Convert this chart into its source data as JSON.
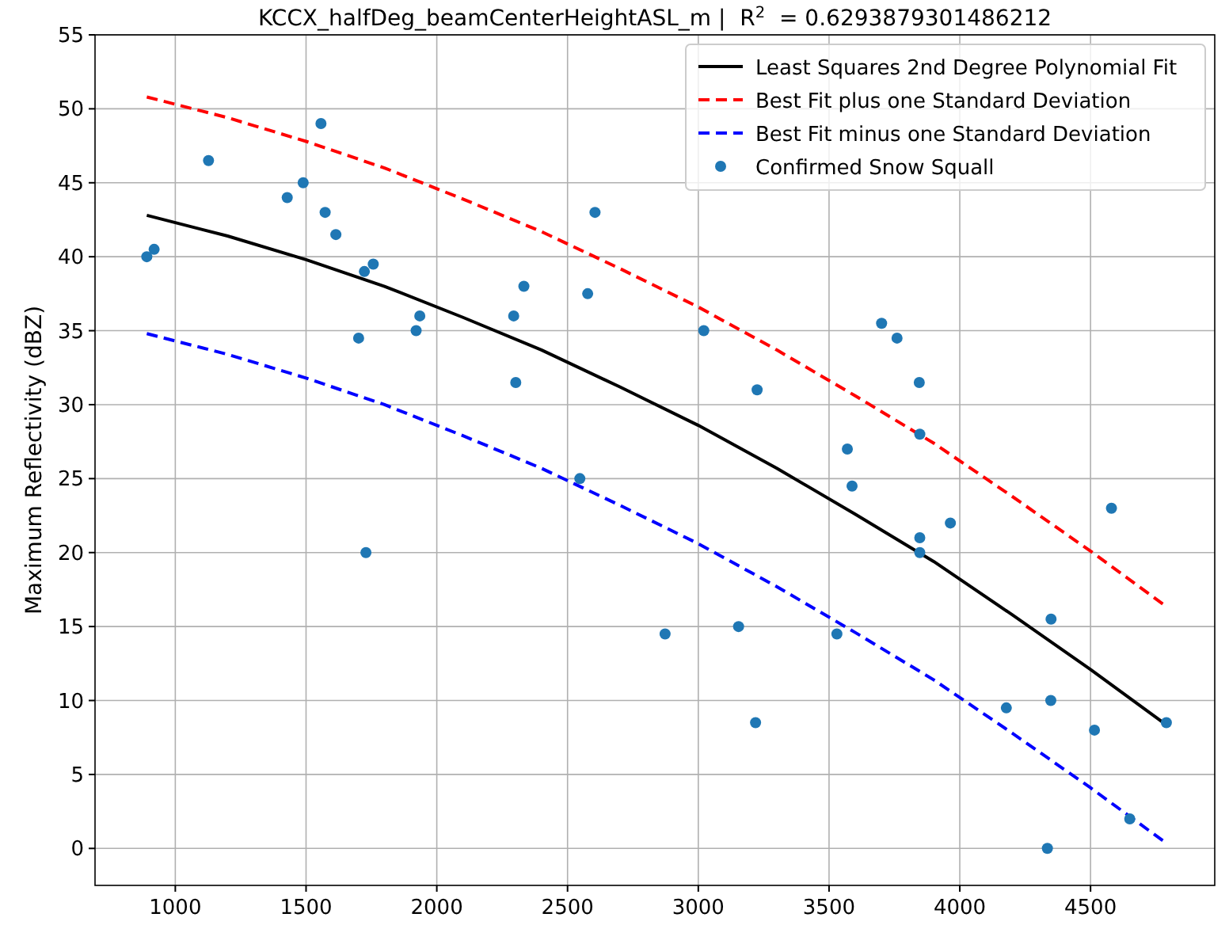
{
  "chart_data": {
    "type": "scatter",
    "title": "KCCX_halfDeg_beamCenterHeightASL_m |  R$^{2}$  = 0.6293879301486212",
    "ylabel": "Maximum Reflectivity (dBZ)",
    "xlim": [
      693,
      4975
    ],
    "ylim": [
      -2.5,
      55
    ],
    "xticks": [
      1000,
      1500,
      2000,
      2500,
      3000,
      3500,
      4000,
      4500
    ],
    "yticks": [
      0,
      5,
      10,
      15,
      20,
      25,
      30,
      35,
      40,
      45,
      50,
      55
    ],
    "grid": true,
    "legend": "top right",
    "series": [
      {
        "name": "Least Squares 2nd Degree Polynomial Fit",
        "type": "line",
        "line_style": "solid",
        "color": "#000000",
        "x": [
          891,
          1200,
          1500,
          1800,
          2100,
          2400,
          2700,
          3000,
          3300,
          3600,
          3900,
          4200,
          4500,
          4786
        ],
        "values": [
          42.8,
          41.4,
          39.8,
          38.0,
          35.9,
          33.7,
          31.2,
          28.6,
          25.7,
          22.6,
          19.4,
          15.8,
          12.1,
          8.4
        ]
      },
      {
        "name": "Best Fit plus one Standard Deviation",
        "type": "line",
        "line_style": "dashed",
        "color": "#ff0000",
        "x": [
          891,
          1200,
          1500,
          1800,
          2100,
          2400,
          2700,
          3000,
          3300,
          3600,
          3900,
          4200,
          4500,
          4786
        ],
        "values": [
          50.8,
          49.4,
          47.8,
          46.0,
          43.9,
          41.7,
          39.2,
          36.6,
          33.7,
          30.6,
          27.4,
          23.8,
          20.1,
          16.4
        ]
      },
      {
        "name": "Best Fit minus one Standard Deviation",
        "type": "line",
        "line_style": "dashed",
        "color": "#0000ff",
        "x": [
          891,
          1200,
          1500,
          1800,
          2100,
          2400,
          2700,
          3000,
          3300,
          3600,
          3900,
          4200,
          4500,
          4786
        ],
        "values": [
          34.8,
          33.4,
          31.8,
          30.0,
          27.9,
          25.7,
          23.2,
          20.6,
          17.7,
          14.6,
          11.4,
          7.8,
          4.1,
          0.4
        ]
      },
      {
        "name": "Confirmed Snow Squall",
        "marker": "circle",
        "color": "#1f77b4",
        "x": [
          891,
          919,
          1127,
          1428,
          1489,
          1557,
          1573,
          1614,
          1701,
          1723,
          1729,
          1757,
          1921,
          1935,
          2294,
          2302,
          2333,
          2547,
          2577,
          2605,
          2873,
          3021,
          3154,
          3219,
          3225,
          3530,
          3570,
          3588,
          3701,
          3760,
          3845,
          3847,
          3847,
          3847,
          3964,
          4178,
          4335,
          4348,
          4349,
          4515,
          4580,
          4650,
          4790
        ],
        "values": [
          40,
          40.5,
          46.5,
          44,
          45,
          49,
          43,
          41.5,
          34.5,
          39,
          20,
          39.5,
          35,
          36,
          36,
          31.5,
          38,
          25,
          37.5,
          43,
          14.5,
          35,
          15,
          8.5,
          31,
          14.5,
          27,
          24.5,
          35.5,
          34.5,
          31.5,
          28,
          21,
          20,
          22,
          9.5,
          0,
          10,
          15.5,
          8,
          23,
          2,
          8.5
        ]
      }
    ]
  }
}
